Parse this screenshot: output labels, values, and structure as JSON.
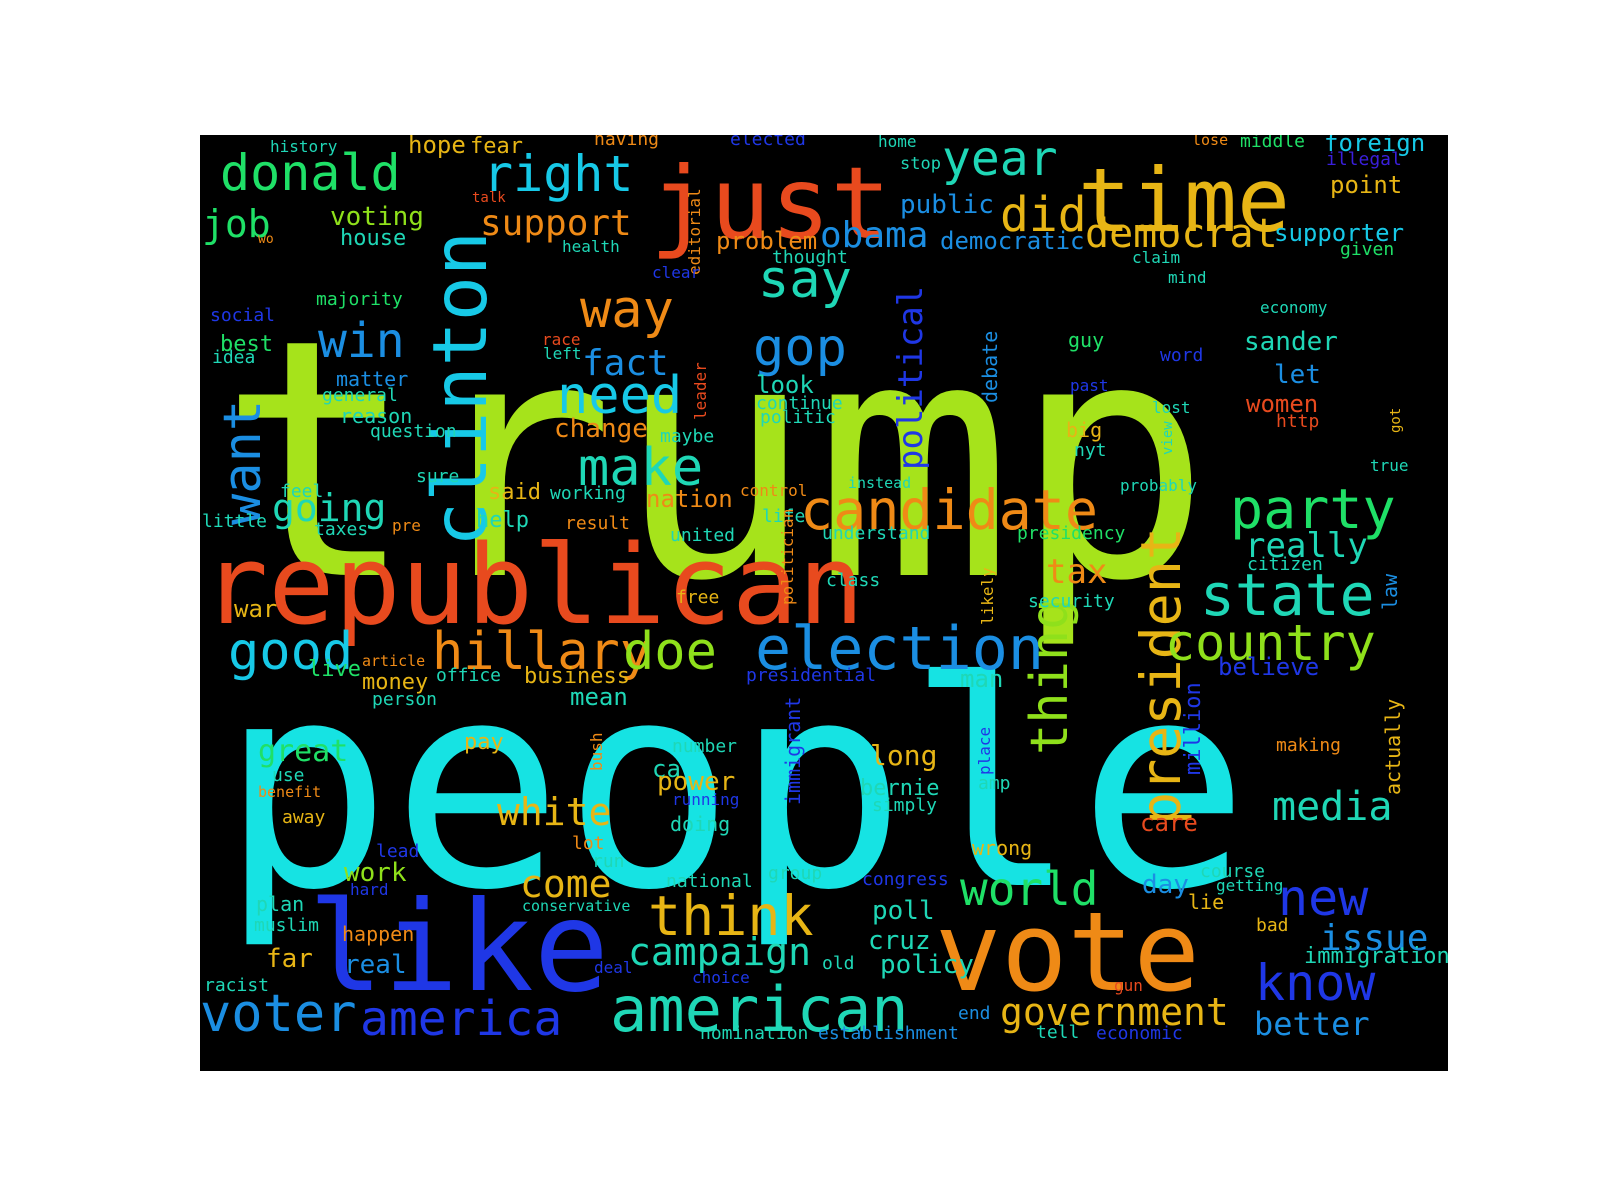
{
  "background_color": "#000000",
  "palette": {
    "lime": "#a6e31b",
    "cyan": "#16e3e3",
    "red": "#e84a1e",
    "orange": "#ef8a16",
    "gold": "#e7b515",
    "blue": "#1f37e6",
    "skyblue": "#1b8ee2",
    "teal": "#1fd7b6",
    "green": "#1fe067",
    "aqua": "#17c9e7",
    "grass": "#8fe01b",
    "violet": "#3a1fdc"
  },
  "words": [
    {
      "text": "trump",
      "color": "lime"
    },
    {
      "text": "people",
      "color": "cyan"
    },
    {
      "text": "republican",
      "color": "red"
    },
    {
      "text": "vote",
      "color": "orange"
    },
    {
      "text": "like",
      "color": "blue"
    },
    {
      "text": "just",
      "color": "red"
    },
    {
      "text": "time",
      "color": "gold"
    },
    {
      "text": "clinton",
      "color": "aqua"
    },
    {
      "text": "american",
      "color": "teal"
    },
    {
      "text": "election",
      "color": "skyblue"
    },
    {
      "text": "candidate",
      "color": "orange"
    },
    {
      "text": "president",
      "color": "gold"
    },
    {
      "text": "hillary",
      "color": "orange"
    },
    {
      "text": "doe",
      "color": "grass"
    },
    {
      "text": "country",
      "color": "grass"
    },
    {
      "text": "state",
      "color": "teal"
    },
    {
      "text": "party",
      "color": "green"
    },
    {
      "text": "donald",
      "color": "green"
    },
    {
      "text": "right",
      "color": "aqua"
    },
    {
      "text": "year",
      "color": "teal"
    },
    {
      "text": "did",
      "color": "gold"
    },
    {
      "text": "democrat",
      "color": "gold"
    },
    {
      "text": "want",
      "color": "skyblue"
    },
    {
      "text": "win",
      "color": "skyblue"
    },
    {
      "text": "way",
      "color": "orange"
    },
    {
      "text": "need",
      "color": "aqua"
    },
    {
      "text": "say",
      "color": "teal"
    },
    {
      "text": "gop",
      "color": "skyblue"
    },
    {
      "text": "make",
      "color": "teal"
    },
    {
      "text": "fact",
      "color": "skyblue"
    },
    {
      "text": "think",
      "color": "gold"
    },
    {
      "text": "world",
      "color": "green"
    },
    {
      "text": "thing",
      "color": "grass"
    },
    {
      "text": "know",
      "color": "blue"
    },
    {
      "text": "new",
      "color": "blue"
    },
    {
      "text": "good",
      "color": "aqua"
    },
    {
      "text": "voter",
      "color": "skyblue"
    },
    {
      "text": "america",
      "color": "blue"
    },
    {
      "text": "government",
      "color": "gold"
    },
    {
      "text": "media",
      "color": "teal"
    },
    {
      "text": "white",
      "color": "gold"
    },
    {
      "text": "campaign",
      "color": "teal"
    },
    {
      "text": "political",
      "color": "blue"
    },
    {
      "text": "support",
      "color": "orange"
    },
    {
      "text": "obama",
      "color": "skyblue"
    },
    {
      "text": "really",
      "color": "teal"
    },
    {
      "text": "issue",
      "color": "skyblue"
    },
    {
      "text": "come",
      "color": "gold"
    },
    {
      "text": "going",
      "color": "teal"
    },
    {
      "text": "job",
      "color": "green"
    },
    {
      "text": "tax",
      "color": "orange"
    },
    {
      "text": "great",
      "color": "green"
    },
    {
      "text": "better",
      "color": "skyblue"
    },
    {
      "text": "history",
      "color": "teal"
    },
    {
      "text": "hope",
      "color": "gold"
    },
    {
      "text": "fear",
      "color": "gold"
    },
    {
      "text": "having",
      "color": "orange"
    },
    {
      "text": "elected",
      "color": "blue"
    },
    {
      "text": "home",
      "color": "teal"
    },
    {
      "text": "lose",
      "color": "orange"
    },
    {
      "text": "middle",
      "color": "green"
    },
    {
      "text": "foreign",
      "color": "aqua"
    },
    {
      "text": "illegal",
      "color": "violet"
    },
    {
      "text": "stop",
      "color": "teal"
    },
    {
      "text": "point",
      "color": "gold"
    },
    {
      "text": "talk",
      "color": "red"
    },
    {
      "text": "voting",
      "color": "grass"
    },
    {
      "text": "house",
      "color": "teal"
    },
    {
      "text": "public",
      "color": "skyblue"
    },
    {
      "text": "editorial",
      "color": "orange"
    },
    {
      "text": "problem",
      "color": "orange"
    },
    {
      "text": "democratic",
      "color": "skyblue"
    },
    {
      "text": "supporter",
      "color": "aqua"
    },
    {
      "text": "given",
      "color": "green"
    },
    {
      "text": "wo",
      "color": "orange"
    },
    {
      "text": "health",
      "color": "teal"
    },
    {
      "text": "clear",
      "color": "blue"
    },
    {
      "text": "thought",
      "color": "teal"
    },
    {
      "text": "claim",
      "color": "teal"
    },
    {
      "text": "mind",
      "color": "teal"
    },
    {
      "text": "majority",
      "color": "green"
    },
    {
      "text": "economy",
      "color": "teal"
    },
    {
      "text": "social",
      "color": "blue"
    },
    {
      "text": "best",
      "color": "green"
    },
    {
      "text": "race",
      "color": "red"
    },
    {
      "text": "guy",
      "color": "green"
    },
    {
      "text": "sander",
      "color": "teal"
    },
    {
      "text": "idea",
      "color": "teal"
    },
    {
      "text": "left",
      "color": "teal"
    },
    {
      "text": "word",
      "color": "blue"
    },
    {
      "text": "let",
      "color": "skyblue"
    },
    {
      "text": "matter",
      "color": "skyblue"
    },
    {
      "text": "leader",
      "color": "red"
    },
    {
      "text": "debate",
      "color": "skyblue"
    },
    {
      "text": "past",
      "color": "blue"
    },
    {
      "text": "general",
      "color": "teal"
    },
    {
      "text": "look",
      "color": "teal"
    },
    {
      "text": "continue",
      "color": "teal"
    },
    {
      "text": "lost",
      "color": "teal"
    },
    {
      "text": "women",
      "color": "red"
    },
    {
      "text": "reason",
      "color": "teal"
    },
    {
      "text": "politic",
      "color": "teal"
    },
    {
      "text": "question",
      "color": "teal"
    },
    {
      "text": "change",
      "color": "orange"
    },
    {
      "text": "big",
      "color": "gold"
    },
    {
      "text": "view",
      "color": "teal"
    },
    {
      "text": "http",
      "color": "red"
    },
    {
      "text": "got",
      "color": "gold"
    },
    {
      "text": "maybe",
      "color": "teal"
    },
    {
      "text": "nyt",
      "color": "teal"
    },
    {
      "text": "sure",
      "color": "teal"
    },
    {
      "text": "true",
      "color": "teal"
    },
    {
      "text": "instead",
      "color": "teal"
    },
    {
      "text": "probably",
      "color": "teal"
    },
    {
      "text": "feel",
      "color": "teal"
    },
    {
      "text": "said",
      "color": "gold"
    },
    {
      "text": "working",
      "color": "teal"
    },
    {
      "text": "nation",
      "color": "orange"
    },
    {
      "text": "control",
      "color": "orange"
    },
    {
      "text": "little",
      "color": "teal"
    },
    {
      "text": "help",
      "color": "teal"
    },
    {
      "text": "pre",
      "color": "orange"
    },
    {
      "text": "taxes",
      "color": "teal"
    },
    {
      "text": "result",
      "color": "orange"
    },
    {
      "text": "life",
      "color": "teal"
    },
    {
      "text": "understand",
      "color": "teal"
    },
    {
      "text": "presidency",
      "color": "green"
    },
    {
      "text": "united",
      "color": "teal"
    },
    {
      "text": "citizen",
      "color": "teal"
    },
    {
      "text": "politician",
      "color": "orange"
    },
    {
      "text": "likely",
      "color": "gold"
    },
    {
      "text": "class",
      "color": "teal"
    },
    {
      "text": "law",
      "color": "skyblue"
    },
    {
      "text": "war",
      "color": "gold"
    },
    {
      "text": "free",
      "color": "gold"
    },
    {
      "text": "security",
      "color": "teal"
    },
    {
      "text": "believe",
      "color": "blue"
    },
    {
      "text": "live",
      "color": "green"
    },
    {
      "text": "article",
      "color": "orange"
    },
    {
      "text": "office",
      "color": "teal"
    },
    {
      "text": "business",
      "color": "gold"
    },
    {
      "text": "man",
      "color": "teal"
    },
    {
      "text": "money",
      "color": "gold"
    },
    {
      "text": "presidential",
      "color": "blue"
    },
    {
      "text": "mean",
      "color": "teal"
    },
    {
      "text": "person",
      "color": "teal"
    },
    {
      "text": "million",
      "color": "blue"
    },
    {
      "text": "actually",
      "color": "gold"
    },
    {
      "text": "pay",
      "color": "gold"
    },
    {
      "text": "number",
      "color": "teal"
    },
    {
      "text": "long",
      "color": "gold"
    },
    {
      "text": "place",
      "color": "blue"
    },
    {
      "text": "making",
      "color": "orange"
    },
    {
      "text": "bush",
      "color": "orange"
    },
    {
      "text": "immigrant",
      "color": "blue"
    },
    {
      "text": "ca",
      "color": "teal"
    },
    {
      "text": "power",
      "color": "gold"
    },
    {
      "text": "bernie",
      "color": "teal"
    },
    {
      "text": "amp",
      "color": "teal"
    },
    {
      "text": "use",
      "color": "teal"
    },
    {
      "text": "running",
      "color": "blue"
    },
    {
      "text": "simply",
      "color": "teal"
    },
    {
      "text": "benefit",
      "color": "orange"
    },
    {
      "text": "away",
      "color": "gold"
    },
    {
      "text": "doing",
      "color": "teal"
    },
    {
      "text": "care",
      "color": "red"
    },
    {
      "text": "lot",
      "color": "orange"
    },
    {
      "text": "lead",
      "color": "blue"
    },
    {
      "text": "run",
      "color": "teal"
    },
    {
      "text": "wrong",
      "color": "gold"
    },
    {
      "text": "work",
      "color": "grass"
    },
    {
      "text": "group",
      "color": "teal"
    },
    {
      "text": "course",
      "color": "teal"
    },
    {
      "text": "hard",
      "color": "blue"
    },
    {
      "text": "national",
      "color": "teal"
    },
    {
      "text": "congress",
      "color": "blue"
    },
    {
      "text": "day",
      "color": "skyblue"
    },
    {
      "text": "getting",
      "color": "teal"
    },
    {
      "text": "plan",
      "color": "teal"
    },
    {
      "text": "conservative",
      "color": "teal"
    },
    {
      "text": "poll",
      "color": "teal"
    },
    {
      "text": "lie",
      "color": "gold"
    },
    {
      "text": "muslim",
      "color": "teal"
    },
    {
      "text": "bad",
      "color": "gold"
    },
    {
      "text": "happen",
      "color": "orange"
    },
    {
      "text": "cruz",
      "color": "teal"
    },
    {
      "text": "immigration",
      "color": "teal"
    },
    {
      "text": "far",
      "color": "gold"
    },
    {
      "text": "real",
      "color": "skyblue"
    },
    {
      "text": "old",
      "color": "teal"
    },
    {
      "text": "policy",
      "color": "teal"
    },
    {
      "text": "deal",
      "color": "blue"
    },
    {
      "text": "racist",
      "color": "teal"
    },
    {
      "text": "choice",
      "color": "blue"
    },
    {
      "text": "gun",
      "color": "red"
    },
    {
      "text": "end",
      "color": "skyblue"
    },
    {
      "text": "nomination",
      "color": "teal"
    },
    {
      "text": "establishment",
      "color": "skyblue"
    },
    {
      "text": "tell",
      "color": "teal"
    },
    {
      "text": "economic",
      "color": "blue"
    }
  ]
}
